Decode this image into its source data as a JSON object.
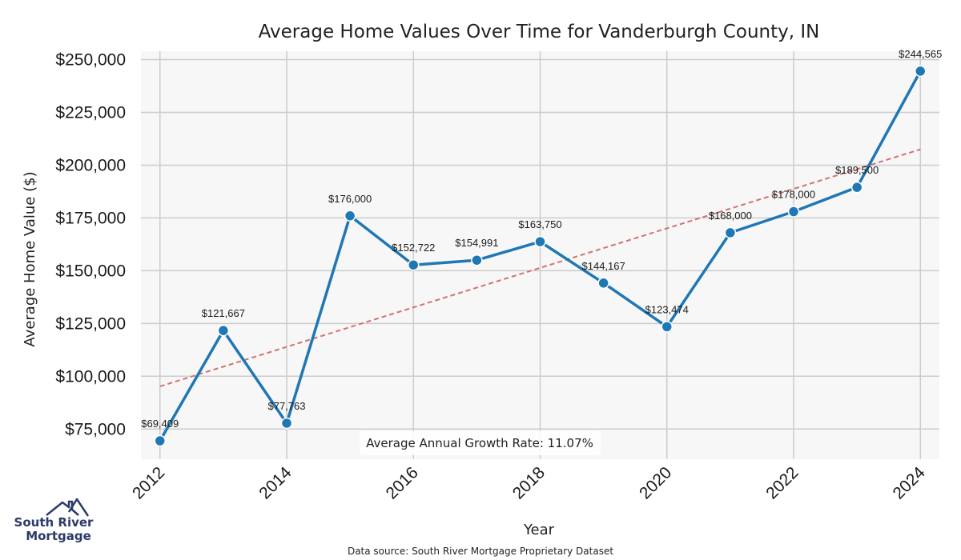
{
  "chart_data": {
    "type": "line",
    "title": "Average Home Values Over Time for Vanderburgh County, IN",
    "xlabel": "Year",
    "ylabel": "Average Home Value ($)",
    "x": [
      2012,
      2013,
      2014,
      2015,
      2016,
      2017,
      2018,
      2019,
      2020,
      2021,
      2022,
      2023,
      2024
    ],
    "series": [
      {
        "name": "Average Home Value",
        "color": "#1f77b4",
        "values": [
          69409,
          121667,
          77763,
          176000,
          152722,
          154991,
          163750,
          144167,
          123474,
          168000,
          178000,
          189500,
          244565
        ]
      }
    ],
    "data_labels": [
      "$69,409",
      "$121,667",
      "$77,763",
      "$176,000",
      "$152,722",
      "$154,991",
      "$163,750",
      "$144,167",
      "$123,474",
      "$168,000",
      "$178,000",
      "$189,500",
      "$244,565"
    ],
    "trendline": {
      "style": "dashed",
      "color": "#d47070",
      "start": [
        2012,
        95200
      ],
      "end": [
        2024,
        207500
      ]
    },
    "xticks": [
      2012,
      2014,
      2016,
      2018,
      2020,
      2022,
      2024
    ],
    "xtick_labels": [
      "2012",
      "2014",
      "2016",
      "2018",
      "2020",
      "2022",
      "2024"
    ],
    "yticks": [
      75000,
      100000,
      125000,
      150000,
      175000,
      200000,
      225000,
      250000
    ],
    "ytick_labels": [
      "$75,000",
      "$100,000",
      "$125,000",
      "$150,000",
      "$175,000",
      "$200,000",
      "$225,000",
      "$250,000"
    ],
    "xlim": [
      2011.7,
      2024.3
    ],
    "ylim": [
      60700,
      254000
    ],
    "grid": true,
    "annotation": "Average Annual Growth Rate: 11.07%",
    "source": "Data source: South River Mortgage Proprietary Dataset"
  },
  "logo": {
    "line1": "South River",
    "line2": "Mortgage"
  },
  "colors": {
    "plot_bg": "#f7f7f7",
    "grid": "#cccccc",
    "line": "#1f77b4",
    "trend": "#d47070",
    "logo": "#2b3a67"
  }
}
